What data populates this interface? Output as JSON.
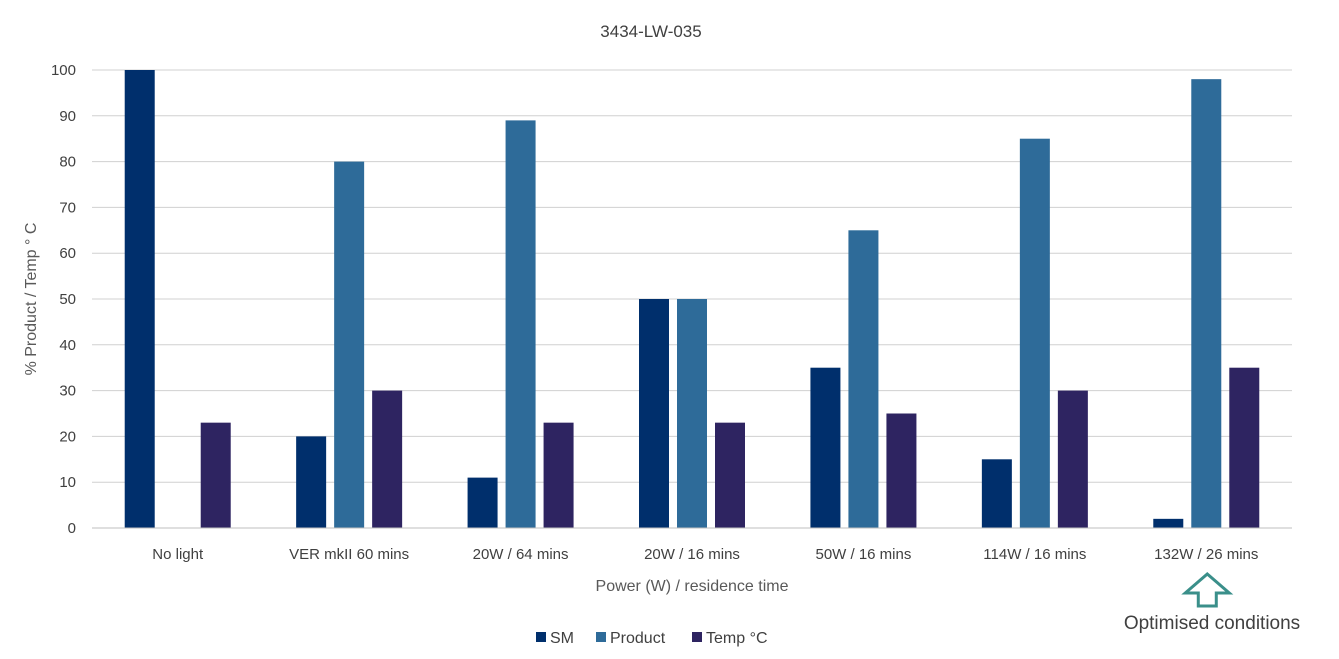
{
  "chart_data": {
    "type": "bar",
    "title": "3434-LW-035",
    "xlabel": "Power (W) / residence time",
    "ylabel": "% Product / Temp ° C",
    "ylim": [
      0,
      100
    ],
    "yticks": [
      0,
      10,
      20,
      30,
      40,
      50,
      60,
      70,
      80,
      90,
      100
    ],
    "grid": true,
    "legend_position": "bottom",
    "categories": [
      "No light",
      "VER mkII 60 mins",
      "20W / 64 mins",
      "20W / 16 mins",
      "50W / 16 mins",
      "114W / 16 mins",
      "132W / 26 mins"
    ],
    "series": [
      {
        "name": "SM",
        "color": "#002f6c",
        "values": [
          100,
          20,
          11,
          50,
          35,
          15,
          2
        ]
      },
      {
        "name": "Product",
        "color": "#2e6b99",
        "values": [
          0,
          80,
          89,
          50,
          65,
          85,
          98
        ]
      },
      {
        "name": "Temp °C",
        "color": "#2e2461",
        "values": [
          23,
          30,
          23,
          23,
          25,
          30,
          35
        ]
      }
    ],
    "annotation": {
      "text": "Optimised conditions",
      "category": "132W / 26 mins",
      "icon": "up-arrow-outline-icon",
      "color": "#3a8f8a"
    }
  }
}
